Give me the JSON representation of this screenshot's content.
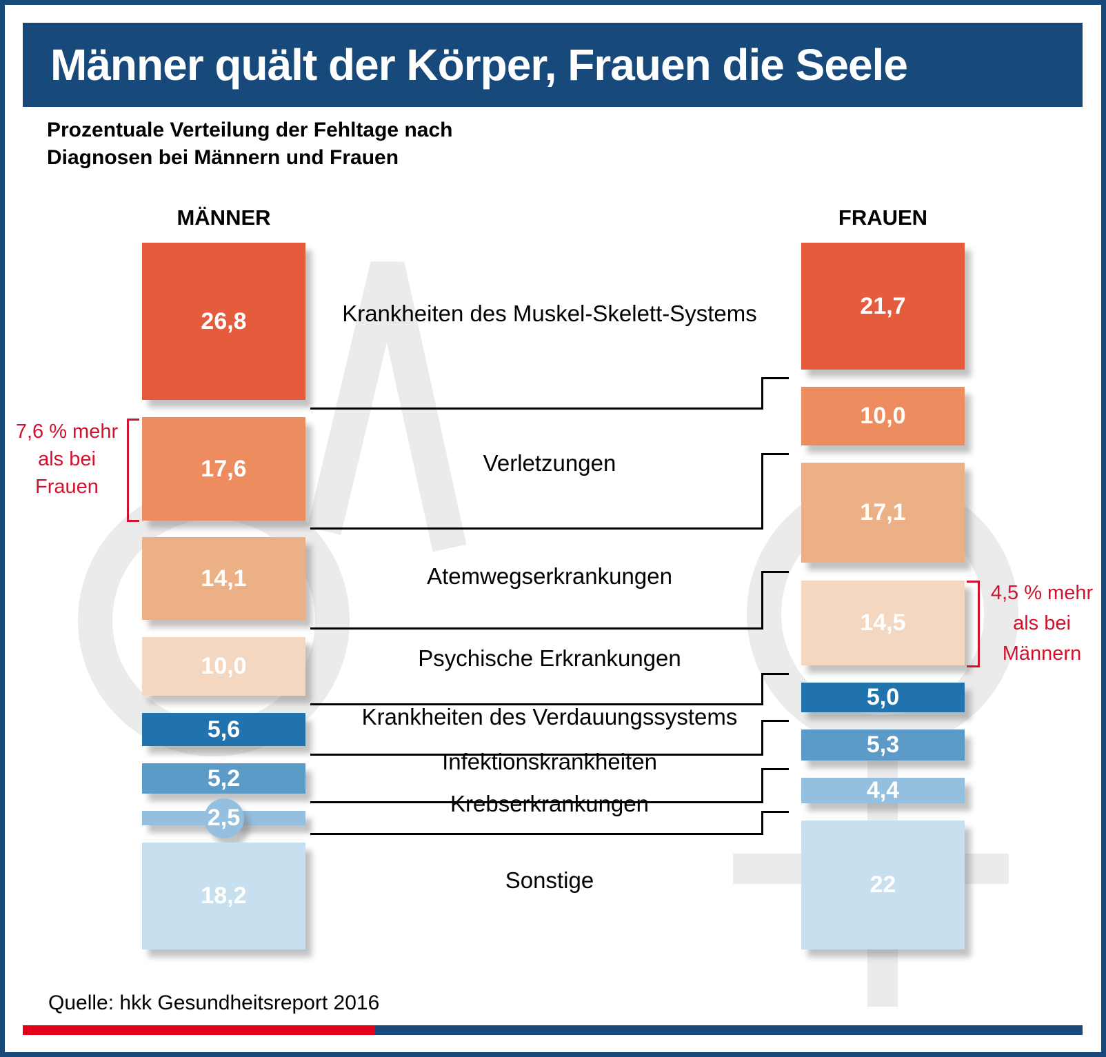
{
  "page": {
    "title": "Männer quält der Körper, Frauen die Seele",
    "subtitle_lines": [
      "Prozentuale Verteilung der Fehltage nach",
      "Diagnosen bei Männern und Frauen"
    ],
    "source": "Quelle: hkk Gesundheitsreport 2016"
  },
  "columns": {
    "left": "MÄNNER",
    "right": "FRAUEN"
  },
  "annotations": {
    "left": {
      "lines": [
        "7,6 % mehr",
        "als bei",
        "Frauen"
      ]
    },
    "right": {
      "lines": [
        "4,5 % mehr",
        "als bei",
        "Männern"
      ]
    }
  },
  "colors": {
    "frame": "#17497b",
    "title_bar": "#17497b",
    "title_text": "#ffffff",
    "annotation_red": "#d2112e",
    "footer_red": "#e2001a",
    "footer_blue": "#17497b",
    "connector": "#000000",
    "watermark": "#ebebeb",
    "value_text": "#ffffff",
    "category_colors": [
      "#e45c3b",
      "#ed8d5f",
      "#ecb087",
      "#f3d7c0",
      "#2173ae",
      "#5c9bc8",
      "#94bfdf",
      "#c8dff0"
    ]
  },
  "chart_data": {
    "type": "bar",
    "title": "Männer quält der Körper, Frauen die Seele",
    "subtitle": "Prozentuale Verteilung der Fehltage nach Diagnosen bei Männern und Frauen",
    "unit": "%",
    "grid": false,
    "legend_position": "column-headers",
    "categories": [
      "Krankheiten des Muskel-Skelett-Systems",
      "Verletzungen",
      "Atemwegserkrankungen",
      "Psychische Erkrankungen",
      "Krankheiten des Verdauungssystems",
      "Infektionskrankheiten",
      "Krebserkrankungen",
      "Sonstige"
    ],
    "series": [
      {
        "name": "MÄNNER",
        "values": [
          26.8,
          17.6,
          14.1,
          10.0,
          5.6,
          5.2,
          2.5,
          18.2
        ],
        "labels": [
          "26,8",
          "17,6",
          "14,1",
          "10,0",
          "5,6",
          "5,2",
          "2,5",
          "18,2"
        ]
      },
      {
        "name": "FRAUEN",
        "values": [
          21.7,
          10.0,
          17.1,
          14.5,
          5.0,
          5.3,
          4.4,
          22.0
        ],
        "labels": [
          "21,7",
          "10,0",
          "17,1",
          "14,5",
          "5,0",
          "5,3",
          "4,4",
          "22"
        ]
      }
    ],
    "annotations": [
      {
        "target_series": "MÄNNER",
        "target_category": "Verletzungen",
        "text": "7,6 % mehr als bei Frauen"
      },
      {
        "target_series": "FRAUEN",
        "target_category": "Psychische Erkrankungen",
        "text": "4,5 % mehr als bei Männern"
      }
    ],
    "source": "Quelle: hkk Gesundheitsreport 2016"
  }
}
